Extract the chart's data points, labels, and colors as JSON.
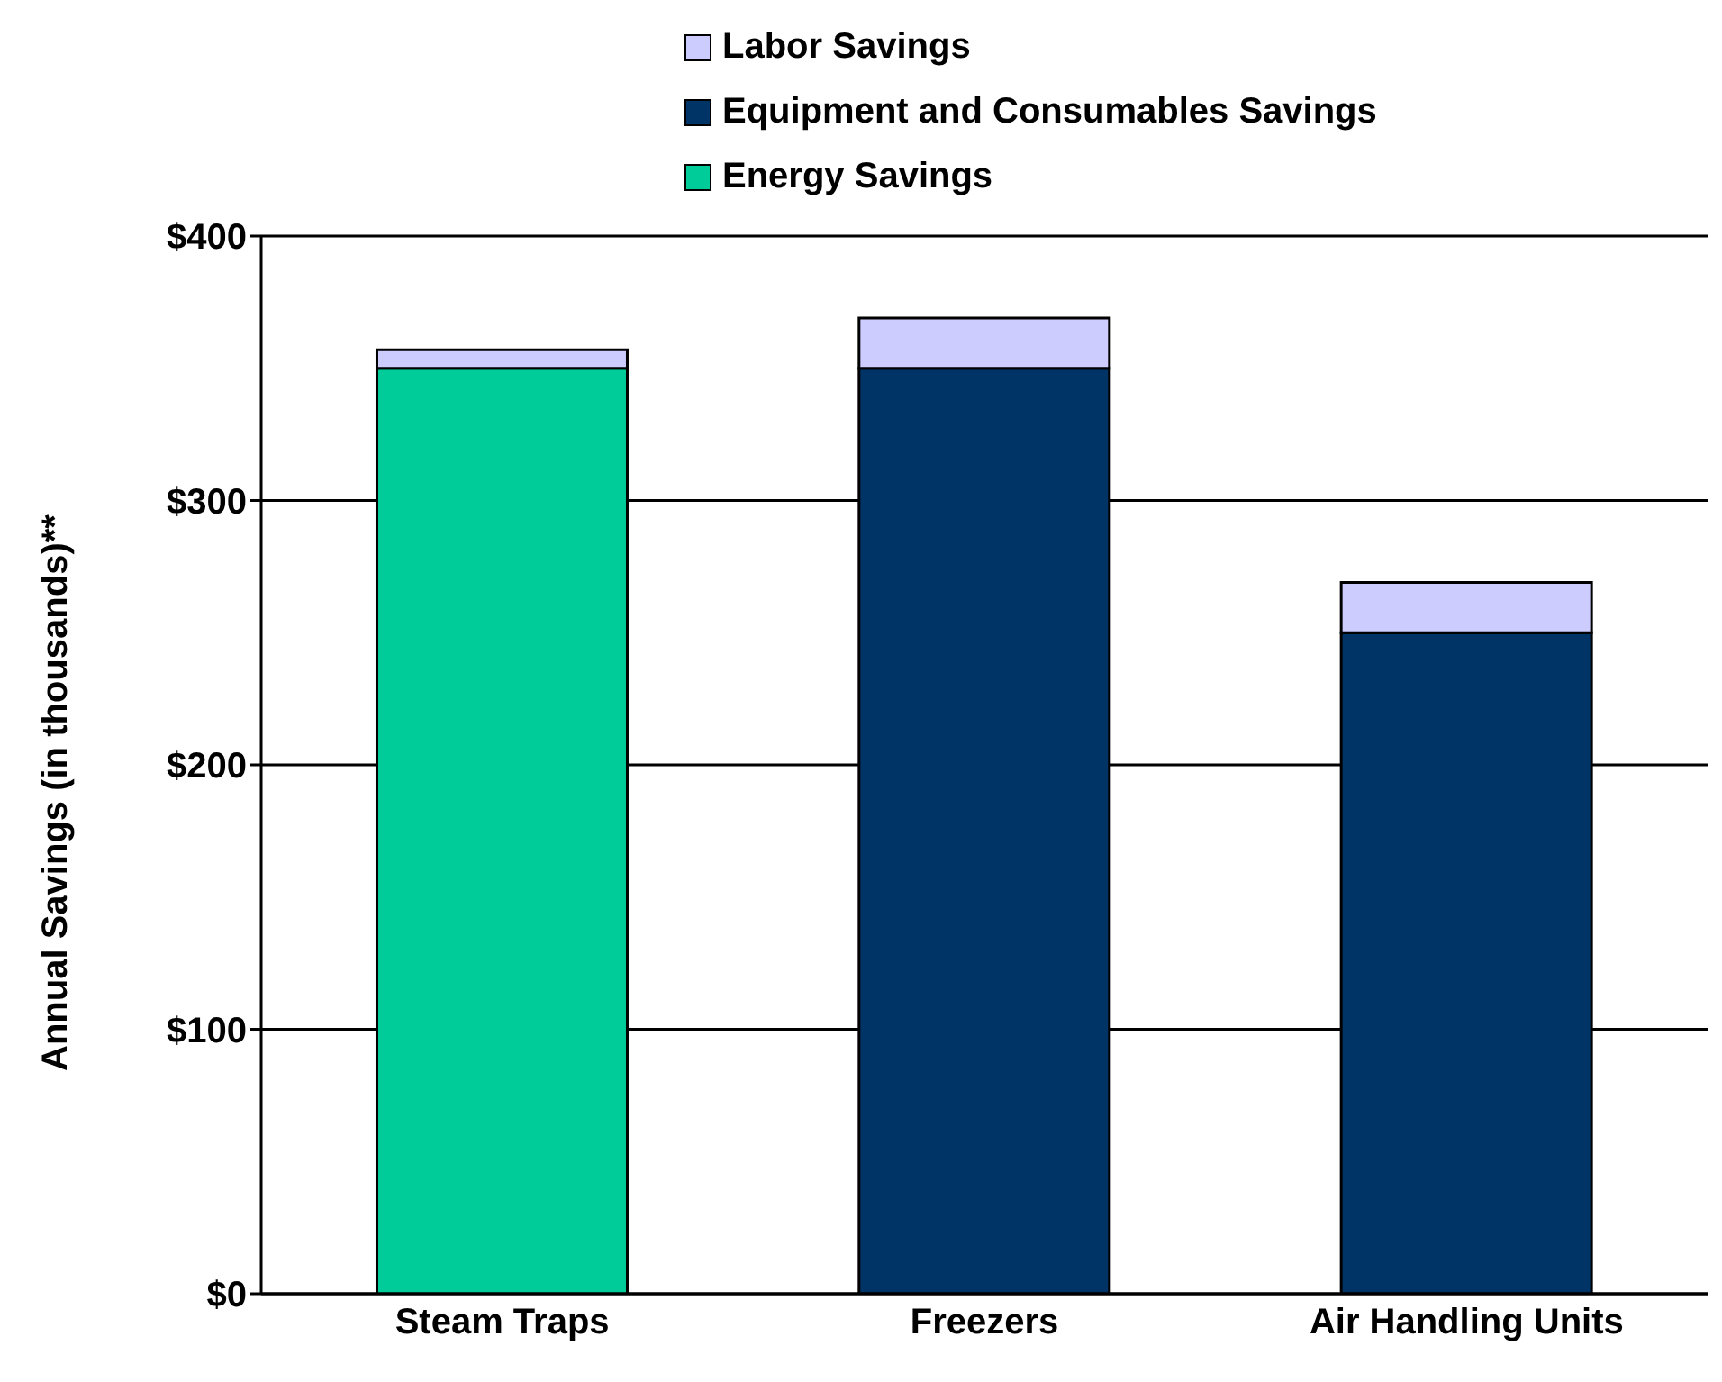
{
  "chart_data": {
    "type": "bar",
    "stacked": true,
    "ylabel": "Annual Savings (in thousands)**",
    "categories": [
      "Steam Traps",
      "Freezers",
      "Air Handling Units"
    ],
    "series": [
      {
        "name": "Energy Savings",
        "color": "#00cc99",
        "values": [
          350,
          0,
          0
        ]
      },
      {
        "name": "Equipment and Consumables Savings",
        "color": "#003366",
        "values": [
          0,
          350,
          250
        ]
      },
      {
        "name": "Labor Savings",
        "color": "#ccccff",
        "values": [
          7,
          19,
          19
        ]
      }
    ],
    "ylim": [
      0,
      400
    ],
    "yticks": [
      {
        "value": 0,
        "label": "$0"
      },
      {
        "value": 100,
        "label": "$100"
      },
      {
        "value": 200,
        "label": "$200"
      },
      {
        "value": 300,
        "label": "$300"
      },
      {
        "value": 400,
        "label": "$400"
      }
    ],
    "grid": "y",
    "legend": "top"
  }
}
